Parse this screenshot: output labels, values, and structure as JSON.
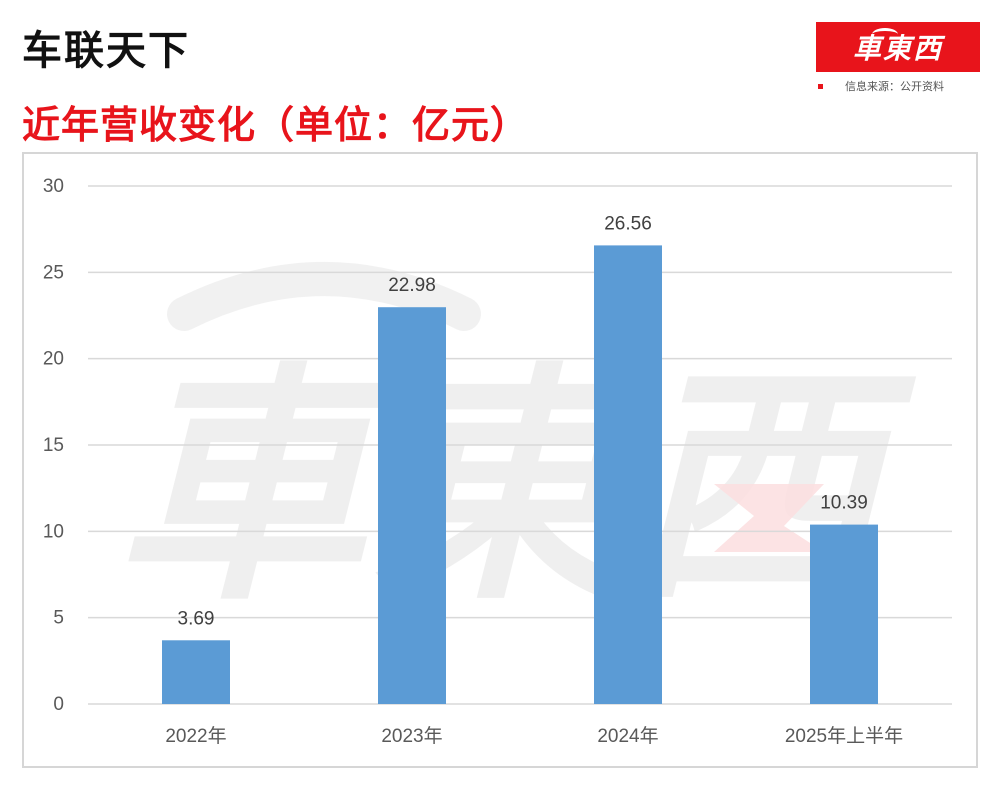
{
  "header": {
    "company": "车联天下",
    "subtitle": "近年营收变化（单位：亿元）",
    "logo_text": "車東西",
    "source": "信息来源：公开资料"
  },
  "colors": {
    "accent": "#e8141b",
    "bar": "#5b9bd5",
    "grid": "#d9d9d9",
    "axis_text": "#595959"
  },
  "watermark": "車東西",
  "chart_data": {
    "type": "bar",
    "title": "",
    "xlabel": "",
    "ylabel": "",
    "categories": [
      "2022年",
      "2023年",
      "2024年",
      "2025年上半年"
    ],
    "values": [
      3.69,
      22.98,
      26.56,
      10.39
    ],
    "data_labels": [
      "3.69",
      "22.98",
      "26.56",
      "10.39"
    ],
    "yticks": [
      0,
      5,
      10,
      15,
      20,
      25,
      30
    ],
    "ylim": [
      0,
      30
    ],
    "grid": true,
    "legend": "none"
  }
}
